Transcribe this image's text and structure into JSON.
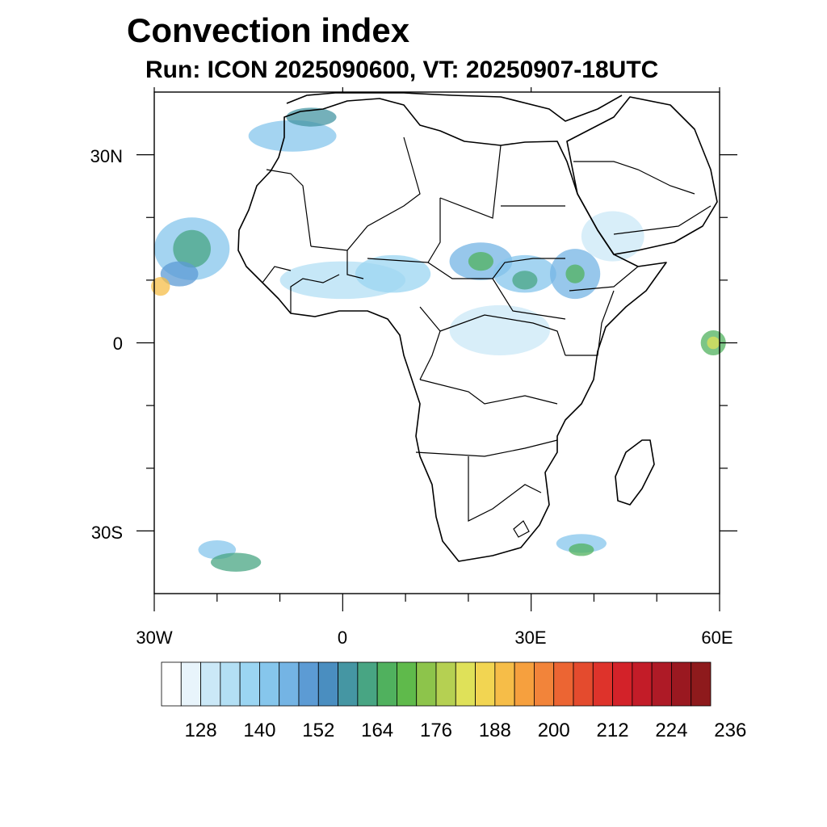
{
  "title": "Convection index",
  "subtitle": "Run: ICON 2025090600,  VT: 20250907-18UTC",
  "map": {
    "lon_range": [
      -30,
      60
    ],
    "lat_range": [
      -40,
      40
    ],
    "lat_labels": [
      {
        "lat": 30,
        "label": "30N"
      },
      {
        "lat": 0,
        "label": "0"
      },
      {
        "lat": -30,
        "label": "30S"
      }
    ],
    "lon_labels": [
      {
        "lon": -30,
        "label": "30W"
      },
      {
        "lon": 0,
        "label": "0"
      },
      {
        "lon": 30,
        "label": "30E"
      },
      {
        "lon": 60,
        "label": "60E"
      }
    ],
    "minor_lon_ticks": [
      -20,
      -10,
      10,
      20,
      40,
      50
    ],
    "minor_lat_ticks": [
      20,
      10,
      -10,
      -20
    ]
  },
  "colorbar": {
    "colors": [
      "#ffffff",
      "#e8f4fb",
      "#cbe8f7",
      "#b3dff4",
      "#9bd5f2",
      "#86c6ec",
      "#74b4e4",
      "#5c9bd4",
      "#4a8ec0",
      "#4596a3",
      "#48a583",
      "#50b15e",
      "#5fba4b",
      "#8dc44b",
      "#b5d052",
      "#dfe159",
      "#f2d552",
      "#f6bd48",
      "#f6a03e",
      "#f2843a",
      "#ec6533",
      "#e44b2e",
      "#de332b",
      "#d32229",
      "#c31c28",
      "#ae1a26",
      "#9a1820",
      "#8e1a1c"
    ],
    "labels": [
      "128",
      "140",
      "152",
      "164",
      "176",
      "188",
      "200",
      "212",
      "224",
      "236"
    ]
  },
  "precip_blobs": [
    {
      "lon": -24,
      "lat": 15,
      "rx": 6,
      "ry": 5,
      "color": "#86c6ec"
    },
    {
      "lon": -24,
      "lat": 15,
      "rx": 3,
      "ry": 3,
      "color": "#48a583"
    },
    {
      "lon": -26,
      "lat": 11,
      "rx": 3,
      "ry": 2,
      "color": "#5c9bd4"
    },
    {
      "lon": -29,
      "lat": 9,
      "rx": 1.5,
      "ry": 1.5,
      "color": "#f6bd48"
    },
    {
      "lon": -8,
      "lat": 33,
      "rx": 7,
      "ry": 2.5,
      "color": "#86c6ec"
    },
    {
      "lon": -5,
      "lat": 36,
      "rx": 4,
      "ry": 1.5,
      "color": "#4596a3"
    },
    {
      "lon": 0,
      "lat": 10,
      "rx": 10,
      "ry": 3,
      "color": "#b3dff4"
    },
    {
      "lon": 8,
      "lat": 11,
      "rx": 6,
      "ry": 3,
      "color": "#9bd5f2"
    },
    {
      "lon": 22,
      "lat": 13,
      "rx": 5,
      "ry": 3,
      "color": "#74b4e4"
    },
    {
      "lon": 22,
      "lat": 13,
      "rx": 2,
      "ry": 1.5,
      "color": "#50b15e"
    },
    {
      "lon": 29,
      "lat": 11,
      "rx": 5,
      "ry": 3,
      "color": "#86c6ec"
    },
    {
      "lon": 29,
      "lat": 10,
      "rx": 2,
      "ry": 1.5,
      "color": "#48a583"
    },
    {
      "lon": 37,
      "lat": 11,
      "rx": 4,
      "ry": 4,
      "color": "#74b4e4"
    },
    {
      "lon": 37,
      "lat": 11,
      "rx": 1.5,
      "ry": 1.5,
      "color": "#50b15e"
    },
    {
      "lon": 25,
      "lat": 2,
      "rx": 8,
      "ry": 4,
      "color": "#cbe8f7"
    },
    {
      "lon": 59,
      "lat": 0,
      "rx": 2,
      "ry": 2,
      "color": "#50b15e"
    },
    {
      "lon": 59,
      "lat": 0,
      "rx": 1,
      "ry": 1,
      "color": "#dfe159"
    },
    {
      "lon": -20,
      "lat": -33,
      "rx": 3,
      "ry": 1.5,
      "color": "#86c6ec"
    },
    {
      "lon": -17,
      "lat": -35,
      "rx": 4,
      "ry": 1.5,
      "color": "#48a583"
    },
    {
      "lon": 38,
      "lat": -32,
      "rx": 4,
      "ry": 1.5,
      "color": "#86c6ec"
    },
    {
      "lon": 38,
      "lat": -33,
      "rx": 2,
      "ry": 1,
      "color": "#50b15e"
    },
    {
      "lon": 43,
      "lat": 17,
      "rx": 5,
      "ry": 4,
      "color": "#cbe8f7"
    }
  ]
}
